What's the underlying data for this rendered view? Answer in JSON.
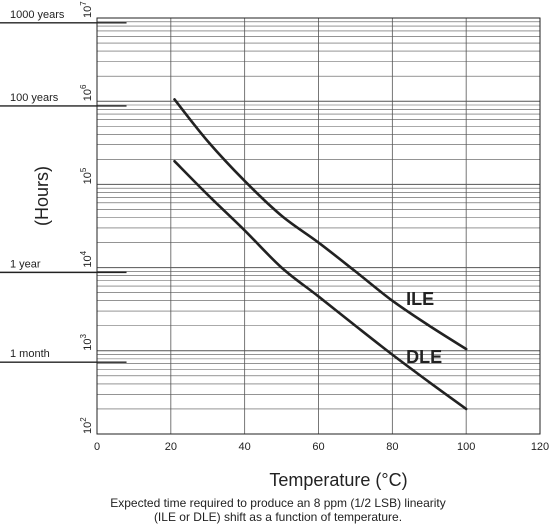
{
  "chart_data": {
    "type": "line",
    "title": "",
    "xlabel": "Temperature (°C)",
    "ylabel": "(Hours)",
    "x_scale": "linear",
    "y_scale": "log",
    "xlim": [
      0,
      120
    ],
    "ylim": [
      100,
      10000000
    ],
    "x_ticks": [
      0,
      20,
      40,
      60,
      80,
      100,
      120
    ],
    "y_ticks": [
      {
        "value": 100,
        "base": "10",
        "exp": "2"
      },
      {
        "value": 1000,
        "base": "10",
        "exp": "3"
      },
      {
        "value": 10000,
        "base": "10",
        "exp": "4"
      },
      {
        "value": 100000,
        "base": "10",
        "exp": "5"
      },
      {
        "value": 1000000,
        "base": "10",
        "exp": "6"
      },
      {
        "value": 10000000,
        "base": "10",
        "exp": "7"
      }
    ],
    "reference_lines": [
      {
        "label": "1000 years",
        "hours": 8760000
      },
      {
        "label": "100 years",
        "hours": 876000
      },
      {
        "label": "1 year",
        "hours": 8760
      },
      {
        "label": "1 month",
        "hours": 730
      }
    ],
    "grid": true,
    "series": [
      {
        "name": "ILE",
        "x": [
          21,
          30,
          40,
          50,
          60,
          70,
          80,
          90,
          100
        ],
        "y": [
          1050000,
          330000,
          110000,
          42000,
          20000,
          9000,
          4000,
          2000,
          1050
        ]
      },
      {
        "name": "DLE",
        "x": [
          21,
          30,
          40,
          50,
          60,
          70,
          80,
          90,
          100
        ],
        "y": [
          190000,
          75000,
          28000,
          10000,
          4500,
          2000,
          900,
          420,
          200
        ]
      }
    ],
    "series_label_positions": [
      "right",
      "right"
    ],
    "caption": [
      "Expected time required to produce an 8 ppm (1/2 LSB) linearity",
      "(ILE or DLE) shift as a function of temperature."
    ],
    "colors": {
      "line": "#222222",
      "grid": "#555555",
      "background": "#ffffff"
    }
  }
}
